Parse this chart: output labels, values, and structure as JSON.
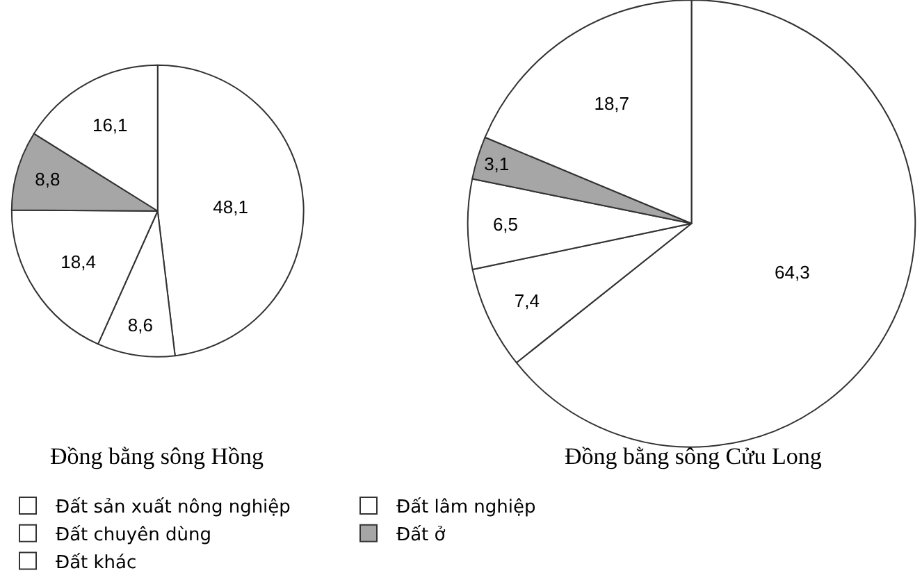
{
  "chart_data": {
    "type": "pie",
    "categories": [
      "Đất sản xuất nông nghiệp",
      "Đất lâm nghiệp",
      "Đất chuyên dùng",
      "Đất ở",
      "Đất khác"
    ],
    "colors": [
      "#ffffff",
      "#ffffff",
      "#ffffff",
      "#a6a6a6",
      "#ffffff"
    ],
    "legend": "bottom",
    "series": [
      {
        "name": "Đồng bằng sông Hồng",
        "values": [
          48.1,
          8.6,
          18.4,
          8.8,
          16.1
        ],
        "value_labels": [
          "48,1",
          "8,6",
          "18,4",
          "8,8",
          "16,1"
        ]
      },
      {
        "name": "Đồng bằng sông Cửu Long",
        "values": [
          64.3,
          7.4,
          6.5,
          3.1,
          18.7
        ],
        "value_labels": [
          "64,3",
          "7,4",
          "6,5",
          "3,1",
          "18,7"
        ]
      }
    ]
  }
}
